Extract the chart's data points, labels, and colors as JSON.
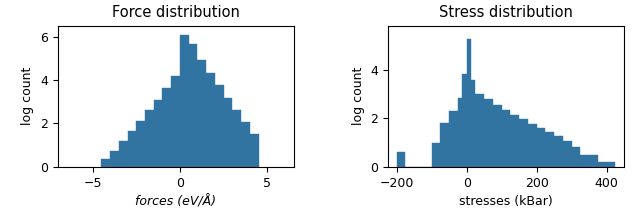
{
  "force_title": "Force distribution",
  "force_xlabel": "forces (eV/Å)",
  "force_ylabel": "log count",
  "force_bin_edges": [
    -4.5,
    -4.0,
    -3.5,
    -3.0,
    -2.5,
    -2.0,
    -1.5,
    -1.0,
    -0.5,
    0.0,
    0.5,
    1.0,
    1.5,
    2.0,
    2.5,
    3.0,
    3.5,
    4.0,
    4.5
  ],
  "force_log_counts": [
    0.35,
    0.75,
    1.2,
    1.65,
    2.1,
    2.6,
    3.1,
    3.65,
    4.2,
    6.05,
    5.65,
    4.9,
    4.3,
    3.75,
    3.15,
    2.6,
    2.05,
    1.5
  ],
  "stress_title": "Stress distribution",
  "stress_xlabel": "stresses (kBar)",
  "stress_ylabel": "log count",
  "stress_bin_edges": [
    -200,
    -175,
    -150,
    -125,
    -100,
    -75,
    -50,
    -25,
    -12.5,
    0,
    12.5,
    25,
    50,
    75,
    100,
    125,
    150,
    175,
    200,
    225,
    250,
    275,
    300,
    325,
    375,
    425
  ],
  "stress_log_counts": [
    0.6,
    0,
    0,
    0,
    1.0,
    1.8,
    2.3,
    2.85,
    3.8,
    5.25,
    3.55,
    3.0,
    2.8,
    2.55,
    2.35,
    2.15,
    1.95,
    1.75,
    1.6,
    1.45,
    1.25,
    1.05,
    0.8,
    0.5,
    0.2
  ],
  "bar_color": "#3274a1",
  "force_xlim": [
    -7.0,
    6.5
  ],
  "force_ylim": [
    0,
    6.5
  ],
  "stress_xlim": [
    -225,
    450
  ],
  "stress_ylim": [
    0,
    5.8
  ],
  "force_xticks": [
    -5,
    0,
    5
  ],
  "force_yticks": [
    0,
    2,
    4,
    6
  ],
  "stress_xticks": [
    -200,
    0,
    200,
    400
  ],
  "stress_yticks": [
    0,
    2,
    4
  ]
}
